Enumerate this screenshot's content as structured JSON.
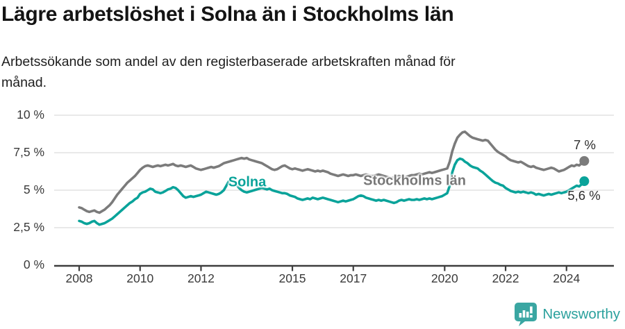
{
  "header": {
    "title": "Lägre arbetslöshet i Solna än i Stockholms län",
    "subtitle_lines": [
      "Arbetssökande som andel av den registerbaserade arbetskraften månad för",
      "månad."
    ]
  },
  "footer": {
    "brand": "Newsworthy",
    "brand_color": "#2ba19d"
  },
  "colors": {
    "solna": "#0aa39a",
    "stockholms_lan": "#7b7b7b",
    "grid": "#e2e2e2",
    "axis": "#3e3e3e",
    "text": "#3a3a3a"
  },
  "chart_data": {
    "type": "line",
    "title": "Lägre arbetslöshet i Solna än i Stockholms län",
    "subtitle": "Arbetssökande som andel av den registerbaserade arbetskraften månad för månad.",
    "x_unit": "month",
    "x_start": "2008-01",
    "x_end": "2024-08",
    "ylim": [
      0,
      10
    ],
    "grid": "horizontal",
    "legend_position": "inline-labels",
    "yticks": [
      {
        "v": 0,
        "label": "0 %"
      },
      {
        "v": 2.5,
        "label": "2,5 %"
      },
      {
        "v": 5,
        "label": "5 %"
      },
      {
        "v": 7.5,
        "label": "7,5 %"
      },
      {
        "v": 10,
        "label": "10 %"
      }
    ],
    "xticks": [
      {
        "year": 2008,
        "label": "2008"
      },
      {
        "year": 2010,
        "label": "2010"
      },
      {
        "year": 2012,
        "label": "2012"
      },
      {
        "year": 2015,
        "label": "2015"
      },
      {
        "year": 2017,
        "label": "2017"
      },
      {
        "year": 2020,
        "label": "2020"
      },
      {
        "year": 2022,
        "label": "2022"
      },
      {
        "year": 2024,
        "label": "2024"
      }
    ],
    "series": [
      {
        "name": "Solna",
        "color": "#0aa39a",
        "end_label": "5,6 %",
        "end_value": 5.6,
        "values": [
          2.95,
          2.9,
          2.8,
          2.75,
          2.8,
          2.9,
          2.95,
          2.8,
          2.7,
          2.75,
          2.8,
          2.9,
          3.0,
          3.1,
          3.25,
          3.4,
          3.55,
          3.7,
          3.85,
          4.0,
          4.15,
          4.25,
          4.4,
          4.5,
          4.75,
          4.85,
          4.9,
          5.0,
          5.1,
          5.05,
          4.9,
          4.85,
          4.8,
          4.85,
          4.95,
          5.05,
          5.1,
          5.2,
          5.15,
          5.0,
          4.8,
          4.6,
          4.5,
          4.55,
          4.6,
          4.55,
          4.6,
          4.65,
          4.7,
          4.8,
          4.9,
          4.85,
          4.8,
          4.75,
          4.7,
          4.75,
          4.85,
          5.0,
          5.3,
          5.6,
          5.74,
          5.6,
          5.35,
          5.15,
          5.0,
          4.9,
          4.85,
          4.9,
          4.95,
          5.0,
          5.05,
          5.1,
          5.15,
          5.1,
          5.05,
          5.1,
          5.0,
          4.95,
          4.9,
          4.85,
          4.8,
          4.8,
          4.75,
          4.65,
          4.6,
          4.55,
          4.45,
          4.4,
          4.35,
          4.4,
          4.45,
          4.4,
          4.5,
          4.45,
          4.4,
          4.45,
          4.5,
          4.45,
          4.4,
          4.35,
          4.3,
          4.25,
          4.2,
          4.25,
          4.3,
          4.25,
          4.3,
          4.35,
          4.4,
          4.5,
          4.6,
          4.65,
          4.6,
          4.5,
          4.45,
          4.4,
          4.35,
          4.3,
          4.35,
          4.3,
          4.35,
          4.3,
          4.25,
          4.2,
          4.15,
          4.2,
          4.3,
          4.35,
          4.3,
          4.35,
          4.4,
          4.35,
          4.35,
          4.4,
          4.35,
          4.4,
          4.45,
          4.4,
          4.45,
          4.4,
          4.45,
          4.5,
          4.55,
          4.6,
          4.7,
          4.8,
          5.3,
          6.2,
          6.7,
          7.0,
          7.1,
          7.05,
          6.9,
          6.8,
          6.65,
          6.55,
          6.5,
          6.45,
          6.3,
          6.2,
          6.05,
          5.9,
          5.75,
          5.6,
          5.5,
          5.45,
          5.35,
          5.3,
          5.15,
          5.05,
          4.95,
          4.9,
          4.85,
          4.9,
          4.85,
          4.9,
          4.85,
          4.8,
          4.85,
          4.8,
          4.7,
          4.75,
          4.7,
          4.65,
          4.7,
          4.75,
          4.7,
          4.75,
          4.8,
          4.85,
          4.8,
          4.85,
          4.9,
          5.0,
          5.1,
          5.2,
          5.3,
          5.25,
          5.4,
          5.6
        ]
      },
      {
        "name": "Stockholms län",
        "color": "#7b7b7b",
        "end_label": "7 %",
        "end_value": 7.0,
        "values": [
          3.85,
          3.8,
          3.7,
          3.6,
          3.55,
          3.6,
          3.65,
          3.55,
          3.5,
          3.6,
          3.7,
          3.85,
          4.0,
          4.2,
          4.45,
          4.7,
          4.9,
          5.1,
          5.3,
          5.5,
          5.65,
          5.8,
          5.95,
          6.15,
          6.35,
          6.5,
          6.6,
          6.65,
          6.6,
          6.55,
          6.6,
          6.65,
          6.6,
          6.65,
          6.7,
          6.65,
          6.7,
          6.75,
          6.65,
          6.6,
          6.65,
          6.6,
          6.55,
          6.6,
          6.65,
          6.55,
          6.45,
          6.4,
          6.35,
          6.4,
          6.45,
          6.5,
          6.55,
          6.5,
          6.55,
          6.6,
          6.7,
          6.8,
          6.85,
          6.9,
          6.95,
          7.0,
          7.05,
          7.1,
          7.15,
          7.1,
          7.15,
          7.05,
          7.0,
          6.95,
          6.9,
          6.85,
          6.8,
          6.7,
          6.6,
          6.5,
          6.4,
          6.35,
          6.4,
          6.5,
          6.6,
          6.65,
          6.55,
          6.45,
          6.4,
          6.45,
          6.4,
          6.35,
          6.3,
          6.35,
          6.4,
          6.35,
          6.3,
          6.25,
          6.3,
          6.25,
          6.3,
          6.25,
          6.2,
          6.1,
          6.05,
          6.0,
          5.95,
          6.0,
          6.05,
          6.0,
          5.95,
          6.0,
          6.0,
          6.05,
          6.0,
          5.95,
          6.0,
          6.05,
          6.0,
          5.95,
          5.95,
          6.0,
          6.05,
          6.0,
          5.95,
          5.9,
          5.85,
          5.8,
          5.85,
          5.9,
          5.95,
          5.9,
          5.85,
          5.9,
          5.95,
          6.0,
          6.0,
          6.05,
          6.1,
          6.05,
          6.1,
          6.15,
          6.2,
          6.15,
          6.2,
          6.25,
          6.3,
          6.35,
          6.4,
          6.45,
          6.9,
          7.6,
          8.1,
          8.5,
          8.7,
          8.85,
          8.9,
          8.75,
          8.6,
          8.5,
          8.45,
          8.4,
          8.35,
          8.3,
          8.35,
          8.3,
          8.1,
          7.9,
          7.7,
          7.55,
          7.45,
          7.35,
          7.25,
          7.1,
          7.0,
          6.95,
          6.9,
          6.85,
          6.9,
          6.8,
          6.7,
          6.6,
          6.55,
          6.6,
          6.5,
          6.45,
          6.4,
          6.35,
          6.4,
          6.45,
          6.5,
          6.45,
          6.35,
          6.25,
          6.3,
          6.35,
          6.45,
          6.55,
          6.65,
          6.6,
          6.7,
          6.65,
          6.8,
          6.95
        ]
      }
    ]
  }
}
